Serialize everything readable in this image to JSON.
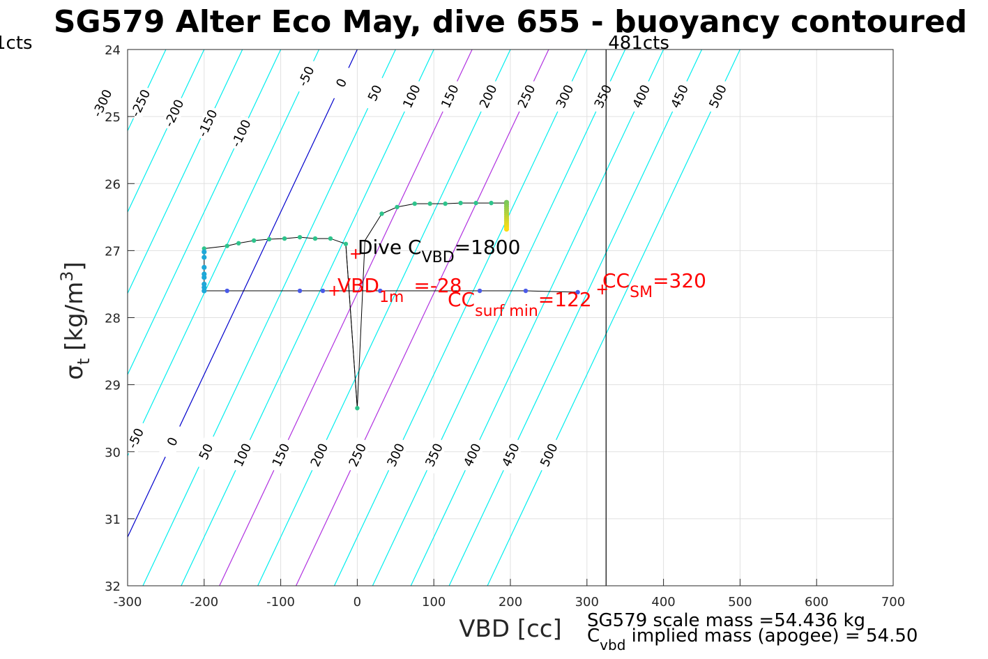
{
  "chart_data": {
    "type": "line",
    "title": "SG579 Alter Eco May, dive 655 - buoyancy contoured",
    "xlabel": "VBD [cc]",
    "ylabel_main": "σ",
    "ylabel_sub": "t",
    "ylabel_units": " [kg/m",
    "ylabel_sup": "3",
    "ylabel_close": "]",
    "xlim": [
      -300,
      700
    ],
    "ylim": [
      24,
      32
    ],
    "y_reversed": true,
    "grid": true,
    "xticks": [
      -300,
      -200,
      -100,
      0,
      100,
      200,
      300,
      400,
      500,
      600,
      700
    ],
    "xtick_labels": [
      "-300",
      "-200",
      "-100",
      "0",
      "100",
      "200",
      "300",
      "400",
      "500",
      "600",
      "700"
    ],
    "yticks": [
      24,
      25,
      26,
      27,
      28,
      29,
      30,
      31,
      32
    ],
    "ytick_labels": [
      "24",
      "25",
      "26",
      "27",
      "28",
      "29",
      "30",
      "31",
      "32"
    ],
    "contours": {
      "levels": [
        -300,
        -250,
        -200,
        -150,
        -100,
        -50,
        0,
        50,
        100,
        150,
        200,
        250,
        300,
        350,
        400,
        450,
        500
      ],
      "line_x_at_sigma24": [
        -300,
        -250,
        -200,
        -150,
        -100,
        -50,
        0,
        50,
        100,
        150,
        200,
        250,
        300,
        350,
        400,
        450,
        500
      ],
      "line_x_at_sigma32": [
        -630,
        -580,
        -530,
        -480,
        -430,
        -380,
        -330,
        -280,
        -230,
        -180,
        -130,
        -80,
        -30,
        20,
        70,
        120,
        170
      ],
      "colors": {
        "zero": "#0000cc",
        "highlight": "#b030e0",
        "default": "#00eeee"
      },
      "highlight_levels": [
        150,
        250
      ],
      "top_labels": [
        {
          "text": "-300",
          "sigma": 24.8
        },
        {
          "text": "-250",
          "sigma": 24.8
        },
        {
          "text": "-200",
          "sigma": 24.95
        },
        {
          "text": "-150",
          "sigma": 25.1
        },
        {
          "text": "-100",
          "sigma": 25.25
        },
        {
          "text": "-50",
          "sigma": 24.4
        },
        {
          "text": "0",
          "sigma": 24.5
        },
        {
          "text": "50",
          "sigma": 24.65
        },
        {
          "text": "100",
          "sigma": 24.7
        },
        {
          "text": "150",
          "sigma": 24.7
        },
        {
          "text": "200",
          "sigma": 24.7
        },
        {
          "text": "250",
          "sigma": 24.7
        },
        {
          "text": "300",
          "sigma": 24.7
        },
        {
          "text": "350",
          "sigma": 24.7
        },
        {
          "text": "400",
          "sigma": 24.7
        },
        {
          "text": "450",
          "sigma": 24.7
        },
        {
          "text": "500",
          "sigma": 24.7
        }
      ],
      "bottom_labels": [
        {
          "text": "-50",
          "sigma": 29.8
        },
        {
          "text": "0",
          "sigma": 29.85
        },
        {
          "text": "50",
          "sigma": 30.0
        },
        {
          "text": "100",
          "sigma": 30.05
        },
        {
          "text": "150",
          "sigma": 30.05
        },
        {
          "text": "200",
          "sigma": 30.05
        },
        {
          "text": "250",
          "sigma": 30.05
        },
        {
          "text": "300",
          "sigma": 30.05
        },
        {
          "text": "350",
          "sigma": 30.05
        },
        {
          "text": "400",
          "sigma": 30.05
        },
        {
          "text": "450",
          "sigma": 30.05
        },
        {
          "text": "500",
          "sigma": 30.05
        }
      ]
    },
    "vertical_line": {
      "x": 325,
      "label": "481cts"
    },
    "left_label": "1cts",
    "track": [
      [
        -200,
        27.6
      ],
      [
        -170,
        27.6
      ],
      [
        -120,
        27.6
      ],
      [
        -75,
        27.6
      ],
      [
        -45,
        27.6
      ],
      [
        -10,
        27.6
      ],
      [
        30,
        27.6
      ],
      [
        100,
        27.6
      ],
      [
        160,
        27.6
      ],
      [
        220,
        27.6
      ],
      [
        288,
        27.62
      ],
      [
        -200,
        27.6
      ],
      [
        -200,
        27.45
      ],
      [
        -200,
        27.3
      ],
      [
        -200,
        27.15
      ],
      [
        -200,
        27.0
      ],
      [
        -200,
        26.97
      ],
      [
        -170,
        26.93
      ],
      [
        -155,
        26.89
      ],
      [
        -135,
        26.85
      ],
      [
        -115,
        26.83
      ],
      [
        -95,
        26.82
      ],
      [
        -75,
        26.8
      ],
      [
        -55,
        26.82
      ],
      [
        -35,
        26.82
      ],
      [
        -15,
        26.9
      ],
      [
        0,
        29.35
      ],
      [
        10,
        26.85
      ],
      [
        32,
        26.45
      ],
      [
        52,
        26.35
      ],
      [
        75,
        26.3
      ],
      [
        95,
        26.3
      ],
      [
        115,
        26.3
      ],
      [
        135,
        26.29
      ],
      [
        155,
        26.29
      ],
      [
        175,
        26.29
      ],
      [
        195,
        26.29
      ]
    ],
    "bottom_track": [
      [
        -200,
        27.6
      ],
      [
        -170,
        27.6
      ],
      [
        -75,
        27.6
      ],
      [
        -45,
        27.6
      ],
      [
        -10,
        27.6
      ],
      [
        30,
        27.6
      ],
      [
        100,
        27.6
      ],
      [
        160,
        27.6
      ],
      [
        220,
        27.6
      ],
      [
        288,
        27.62
      ]
    ],
    "dive_points": [
      [
        -200,
        27.6
      ],
      [
        -200,
        27.55
      ],
      [
        -200,
        27.5
      ],
      [
        -200,
        27.4
      ],
      [
        -200,
        27.35
      ],
      [
        -200,
        27.25
      ],
      [
        -200,
        27.1
      ],
      [
        -200,
        27.02
      ],
      [
        -200,
        26.97
      ],
      [
        -170,
        26.93
      ],
      [
        -155,
        26.89
      ],
      [
        -135,
        26.85
      ],
      [
        -115,
        26.83
      ],
      [
        -95,
        26.82
      ],
      [
        -75,
        26.8
      ],
      [
        -55,
        26.82
      ],
      [
        -35,
        26.82
      ],
      [
        -15,
        26.9
      ],
      [
        0,
        29.35
      ],
      [
        32,
        26.45
      ],
      [
        52,
        26.35
      ],
      [
        75,
        26.3
      ],
      [
        95,
        26.3
      ],
      [
        115,
        26.3
      ],
      [
        135,
        26.29
      ],
      [
        155,
        26.29
      ],
      [
        175,
        26.29
      ]
    ],
    "blue_points": [
      [
        -170,
        27.6
      ],
      [
        -75,
        27.6
      ],
      [
        -45,
        27.6
      ],
      [
        30,
        27.6
      ],
      [
        160,
        27.6
      ],
      [
        220,
        27.6
      ],
      [
        288,
        27.62
      ]
    ],
    "end_stack": {
      "x": 195,
      "sigma_from": 26.28,
      "sigma_to": 26.68
    },
    "markers": [
      {
        "x": -2,
        "sigma": 27.05
      },
      {
        "x": -30,
        "sigma": 27.6
      },
      {
        "x": 320,
        "sigma": 27.58
      }
    ],
    "annotations": {
      "dive": {
        "prefix": "Dive C",
        "sub": "VBD",
        "suffix": "=1800"
      },
      "vbd1m": {
        "prefix": "VBD",
        "sub": "1m",
        "suffix": "=-28"
      },
      "ccsurf": {
        "prefix": "CC",
        "sub": "surf min",
        "suffix": "=122"
      },
      "ccsm": {
        "prefix": "CC",
        "sub": "SM",
        "suffix": "=320"
      }
    },
    "footer": {
      "line1": "SG579 scale mass =54.436 kg",
      "line2_prefix": "C",
      "line2_sub": "vbd",
      "line2_suffix": " implied mass (apogee) = 54.50"
    }
  }
}
